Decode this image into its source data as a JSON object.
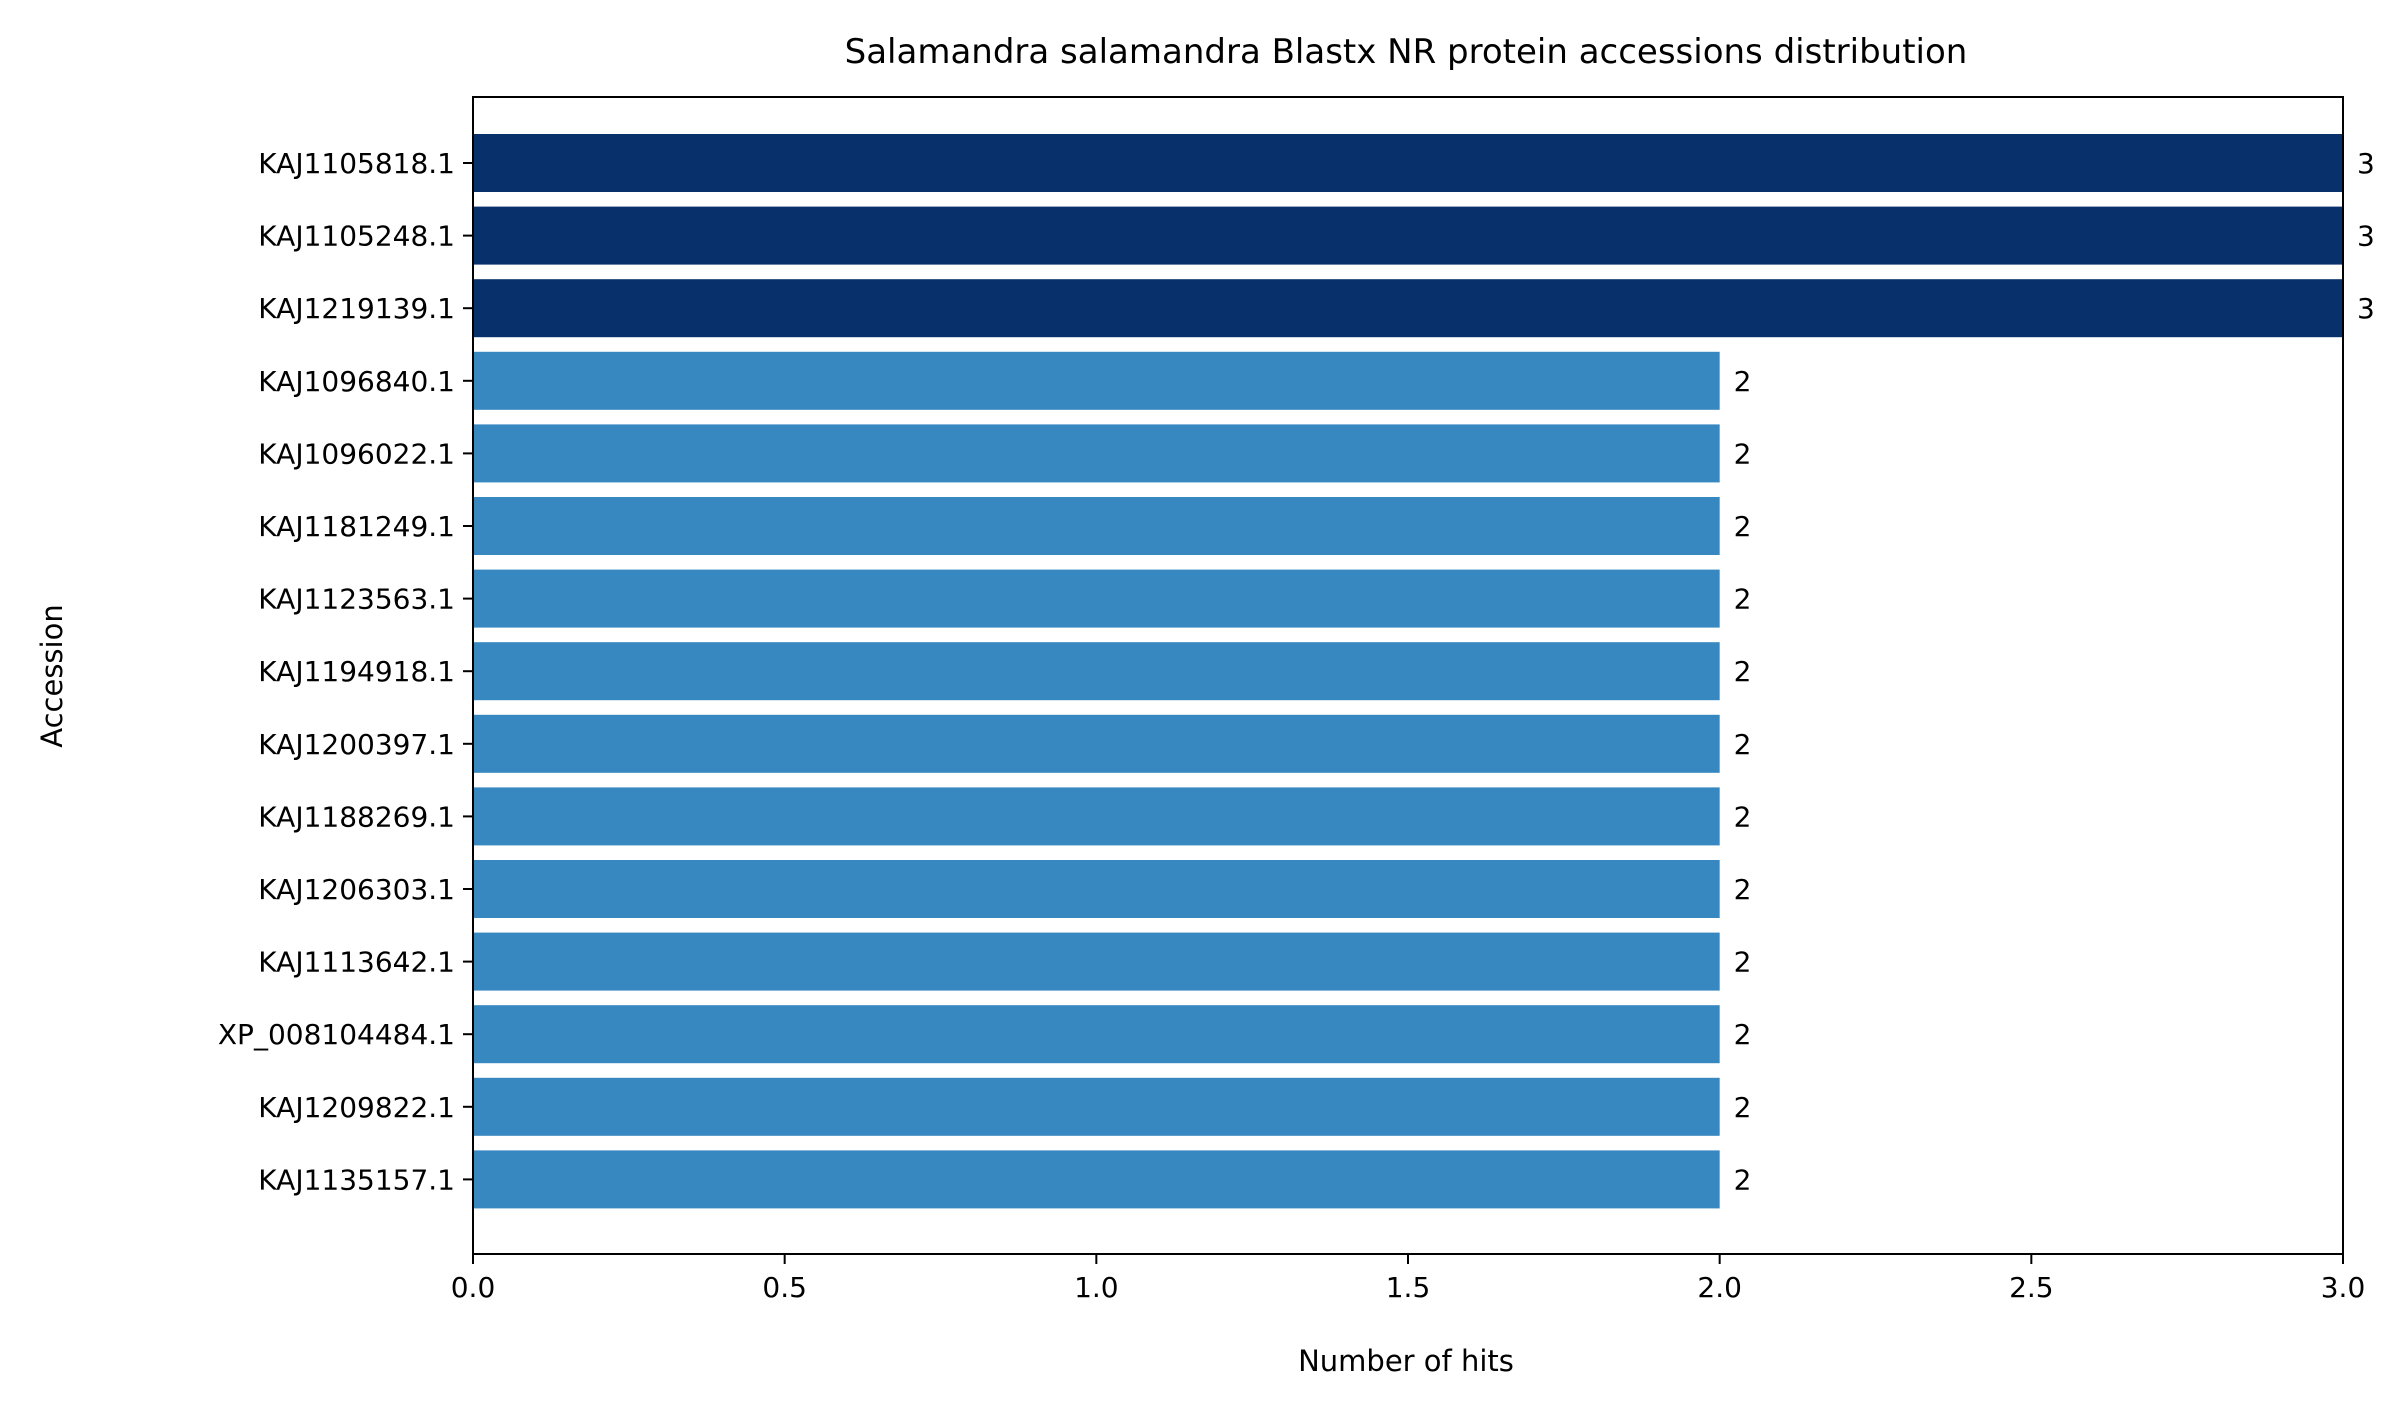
{
  "chart_data": {
    "type": "bar",
    "orientation": "horizontal",
    "title": "Salamandra salamandra Blastx NR protein accessions distribution",
    "xlabel": "Number of hits",
    "ylabel": "Accession",
    "xlim": [
      0,
      3
    ],
    "xticks": [
      "0.0",
      "0.5",
      "1.0",
      "1.5",
      "2.0",
      "2.5",
      "3.0"
    ],
    "grid": false,
    "categories": [
      "KAJ1105818.1",
      "KAJ1105248.1",
      "KAJ1219139.1",
      "KAJ1096840.1",
      "KAJ1096022.1",
      "KAJ1181249.1",
      "KAJ1123563.1",
      "KAJ1194918.1",
      "KAJ1200397.1",
      "KAJ1188269.1",
      "KAJ1206303.1",
      "KAJ1113642.1",
      "XP_008104484.1",
      "KAJ1209822.1",
      "KAJ1135157.1"
    ],
    "values": [
      3,
      3,
      3,
      2,
      2,
      2,
      2,
      2,
      2,
      2,
      2,
      2,
      2,
      2,
      2
    ],
    "data_labels": [
      "3",
      "3",
      "3",
      "2",
      "2",
      "2",
      "2",
      "2",
      "2",
      "2",
      "2",
      "2",
      "2",
      "2",
      "2"
    ],
    "colors": {
      "high": "#08306b",
      "normal": "#3787c0"
    }
  }
}
